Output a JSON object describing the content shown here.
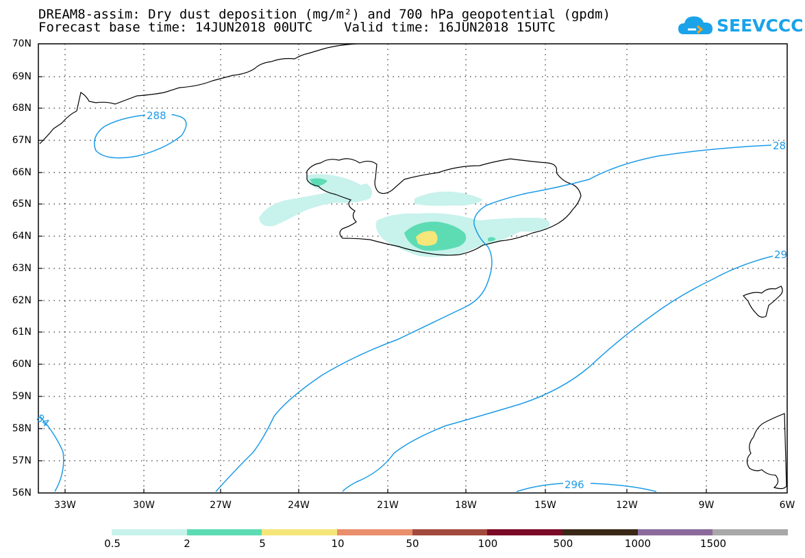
{
  "title_line1": "DREAM8-assim: Dry dust deposition (mg/m²) and 700 hPa geopotential (gpdm)",
  "title_line2": "Forecast base time: 14JUN2018 00UTC    Valid time: 16JUN2018 15UTC",
  "logo": {
    "text": "SEEVCCC",
    "icon": "cloud-logo-icon",
    "color": "#1aa3e8"
  },
  "lat_labels": [
    "70N",
    "69N",
    "68N",
    "67N",
    "66N",
    "65N",
    "64N",
    "63N",
    "62N",
    "61N",
    "60N",
    "59N",
    "58N",
    "57N",
    "56N"
  ],
  "lon_labels": [
    "33W",
    "30W",
    "27W",
    "24W",
    "21W",
    "18W",
    "15W",
    "12W",
    "9W",
    "6W"
  ],
  "contour_labels": {
    "c288_top": "288",
    "c288_right": "28",
    "c292_right": "29",
    "c284_left": "84",
    "c296_bottom": "296"
  },
  "colors": {
    "contour": "#1a9ae6",
    "coast": "#000000"
  },
  "legend": {
    "labels": [
      "0.5",
      "2",
      "5",
      "10",
      "50",
      "100",
      "500",
      "1000",
      "1500"
    ],
    "colors": [
      "#c8f2ec",
      "#5ddcb4",
      "#f5e67a",
      "#e98f6c",
      "#a34a3e",
      "#7b0a26",
      "#3a2816",
      "#8c6a9c",
      "#a8a8a8"
    ]
  }
}
